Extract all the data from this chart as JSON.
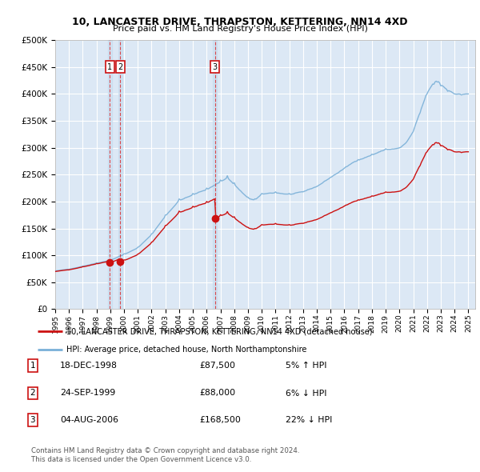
{
  "title": "10, LANCASTER DRIVE, THRAPSTON, KETTERING, NN14 4XD",
  "subtitle": "Price paid vs. HM Land Registry's House Price Index (HPI)",
  "ylim": [
    0,
    500000
  ],
  "yticks": [
    0,
    50000,
    100000,
    150000,
    200000,
    250000,
    300000,
    350000,
    400000,
    450000,
    500000
  ],
  "plot_bg_color": "#dce8f5",
  "grid_color": "#ffffff",
  "hpi_color": "#7ab0d8",
  "price_color": "#cc1111",
  "legend_items": [
    "10, LANCASTER DRIVE, THRAPSTON, KETTERING, NN14 4XD (detached house)",
    "HPI: Average price, detached house, North Northamptonshire"
  ],
  "transactions": [
    {
      "id": 1,
      "date": "18-DEC-1998",
      "year": 1998.96,
      "price": 87500,
      "pct": "5%",
      "dir": "↑"
    },
    {
      "id": 2,
      "date": "24-SEP-1999",
      "year": 1999.73,
      "price": 88000,
      "pct": "6%",
      "dir": "↓"
    },
    {
      "id": 3,
      "date": "04-AUG-2006",
      "year": 2006.59,
      "price": 168500,
      "pct": "22%",
      "dir": "↓"
    }
  ],
  "footer_line1": "Contains HM Land Registry data © Crown copyright and database right 2024.",
  "footer_line2": "This data is licensed under the Open Government Licence v3.0.",
  "xmin": 1995.0,
  "xmax": 2025.5,
  "xticks": [
    1995,
    1996,
    1997,
    1998,
    1999,
    2000,
    2001,
    2002,
    2003,
    2004,
    2005,
    2006,
    2007,
    2008,
    2009,
    2010,
    2011,
    2012,
    2013,
    2014,
    2015,
    2016,
    2017,
    2018,
    2019,
    2020,
    2021,
    2022,
    2023,
    2024,
    2025
  ]
}
